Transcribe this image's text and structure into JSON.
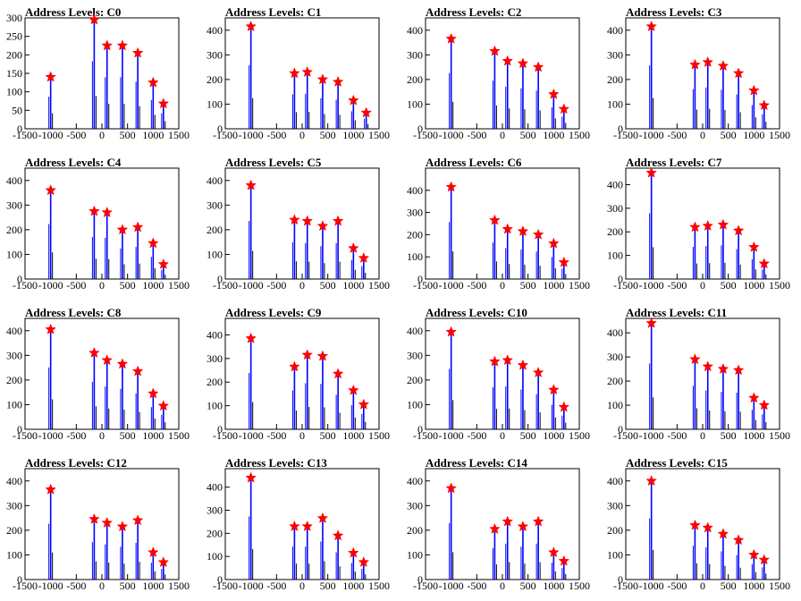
{
  "chart_data": [
    {
      "type": "bar",
      "title": "Address Levels: C0",
      "xlim": [
        -1500,
        1500
      ],
      "ylim": [
        0,
        300
      ],
      "yticks": [
        0,
        50,
        100,
        150,
        200,
        250,
        300
      ],
      "x": [
        -1000,
        -150,
        100,
        400,
        700,
        1000,
        1200
      ],
      "values": [
        140,
        295,
        225,
        225,
        205,
        125,
        68
      ]
    },
    {
      "type": "bar",
      "title": "Address Levels: C1",
      "xlim": [
        -1500,
        1500
      ],
      "ylim": [
        0,
        450
      ],
      "yticks": [
        0,
        100,
        200,
        300,
        400
      ],
      "x": [
        -1000,
        -150,
        100,
        400,
        700,
        1000,
        1250
      ],
      "values": [
        415,
        225,
        230,
        200,
        190,
        115,
        65
      ]
    },
    {
      "type": "bar",
      "title": "Address Levels: C2",
      "xlim": [
        -1500,
        1500
      ],
      "ylim": [
        0,
        450
      ],
      "yticks": [
        0,
        100,
        200,
        300,
        400
      ],
      "x": [
        -1000,
        -150,
        100,
        400,
        700,
        1000,
        1200
      ],
      "values": [
        365,
        315,
        275,
        265,
        250,
        140,
        80
      ]
    },
    {
      "type": "bar",
      "title": "Address Levels: C3",
      "xlim": [
        -1500,
        1500
      ],
      "ylim": [
        0,
        450
      ],
      "yticks": [
        0,
        100,
        200,
        300,
        400
      ],
      "x": [
        -1000,
        -150,
        100,
        400,
        700,
        1000,
        1200
      ],
      "values": [
        415,
        260,
        270,
        255,
        225,
        155,
        95
      ]
    },
    {
      "type": "bar",
      "title": "Address Levels: C4",
      "xlim": [
        -1500,
        1500
      ],
      "ylim": [
        0,
        450
      ],
      "yticks": [
        0,
        100,
        200,
        300,
        400
      ],
      "x": [
        -1000,
        -150,
        100,
        400,
        700,
        1000,
        1200
      ],
      "values": [
        360,
        275,
        270,
        200,
        210,
        145,
        60
      ]
    },
    {
      "type": "bar",
      "title": "Address Levels: C5",
      "xlim": [
        -1500,
        1500
      ],
      "ylim": [
        0,
        450
      ],
      "yticks": [
        0,
        100,
        200,
        300,
        400
      ],
      "x": [
        -1000,
        -150,
        100,
        400,
        700,
        1000,
        1200
      ],
      "values": [
        380,
        240,
        235,
        215,
        235,
        125,
        85
      ]
    },
    {
      "type": "bar",
      "title": "Address Levels: C6",
      "xlim": [
        -1500,
        1500
      ],
      "ylim": [
        0,
        500
      ],
      "yticks": [
        0,
        100,
        200,
        300,
        400
      ],
      "x": [
        -1000,
        -150,
        100,
        400,
        700,
        1000,
        1200
      ],
      "values": [
        415,
        265,
        225,
        215,
        200,
        160,
        75
      ]
    },
    {
      "type": "bar",
      "title": "Address Levels: C7",
      "xlim": [
        -1500,
        1500
      ],
      "ylim": [
        0,
        470
      ],
      "yticks": [
        0,
        100,
        200,
        300,
        400
      ],
      "x": [
        -1000,
        -150,
        100,
        400,
        700,
        1000,
        1200
      ],
      "values": [
        450,
        220,
        225,
        230,
        205,
        135,
        65
      ]
    },
    {
      "type": "bar",
      "title": "Address Levels: C8",
      "xlim": [
        -1500,
        1500
      ],
      "ylim": [
        0,
        450
      ],
      "yticks": [
        0,
        100,
        200,
        300,
        400
      ],
      "x": [
        -1000,
        -150,
        100,
        400,
        700,
        1000,
        1200
      ],
      "values": [
        405,
        310,
        280,
        265,
        235,
        145,
        95
      ]
    },
    {
      "type": "bar",
      "title": "Address Levels: C9",
      "xlim": [
        -1500,
        1500
      ],
      "ylim": [
        0,
        470
      ],
      "yticks": [
        0,
        100,
        200,
        300,
        400
      ],
      "x": [
        -1000,
        -150,
        100,
        400,
        700,
        1000,
        1200
      ],
      "values": [
        385,
        265,
        315,
        310,
        235,
        165,
        105
      ]
    },
    {
      "type": "bar",
      "title": "Address Levels: C10",
      "xlim": [
        -1500,
        1500
      ],
      "ylim": [
        0,
        450
      ],
      "yticks": [
        0,
        100,
        200,
        300,
        400
      ],
      "x": [
        -1000,
        -150,
        100,
        400,
        700,
        1000,
        1200
      ],
      "values": [
        395,
        275,
        280,
        260,
        230,
        160,
        90
      ]
    },
    {
      "type": "bar",
      "title": "Address Levels: C11",
      "xlim": [
        -1500,
        1500
      ],
      "ylim": [
        0,
        460
      ],
      "yticks": [
        0,
        100,
        200,
        300,
        400
      ],
      "x": [
        -1000,
        -150,
        100,
        400,
        700,
        1000,
        1200
      ],
      "values": [
        440,
        290,
        260,
        250,
        245,
        130,
        100
      ]
    },
    {
      "type": "bar",
      "title": "Address Levels: C12",
      "xlim": [
        -1500,
        1500
      ],
      "ylim": [
        0,
        450
      ],
      "yticks": [
        0,
        100,
        200,
        300,
        400
      ],
      "x": [
        -1000,
        -150,
        100,
        400,
        700,
        1000,
        1200
      ],
      "values": [
        365,
        245,
        230,
        215,
        240,
        110,
        70
      ]
    },
    {
      "type": "bar",
      "title": "Address Levels: C13",
      "xlim": [
        -1500,
        1500
      ],
      "ylim": [
        0,
        480
      ],
      "yticks": [
        0,
        100,
        200,
        300,
        400
      ],
      "x": [
        -1000,
        -150,
        100,
        400,
        700,
        1000,
        1200
      ],
      "values": [
        440,
        230,
        230,
        265,
        190,
        115,
        75
      ]
    },
    {
      "type": "bar",
      "title": "Address Levels: C14",
      "xlim": [
        -1500,
        1500
      ],
      "ylim": [
        0,
        450
      ],
      "yticks": [
        0,
        100,
        200,
        300,
        400
      ],
      "x": [
        -1000,
        -150,
        100,
        400,
        700,
        1000,
        1200
      ],
      "values": [
        370,
        205,
        235,
        215,
        235,
        110,
        75
      ]
    },
    {
      "type": "bar",
      "title": "Address Levels: C15",
      "xlim": [
        -1500,
        1500
      ],
      "ylim": [
        0,
        450
      ],
      "yticks": [
        0,
        100,
        200,
        300,
        400
      ],
      "x": [
        -1000,
        -150,
        100,
        400,
        700,
        1000,
        1200
      ],
      "values": [
        400,
        220,
        210,
        185,
        160,
        100,
        80
      ]
    }
  ],
  "xtick_labels": [
    "-1500",
    "-1000",
    "-500",
    "0",
    "500",
    "1000",
    "1500"
  ],
  "colors": {
    "bar": "#0000ff",
    "secondary_bar": "#000000",
    "marker": "#ff0000",
    "axis": "#000000"
  }
}
